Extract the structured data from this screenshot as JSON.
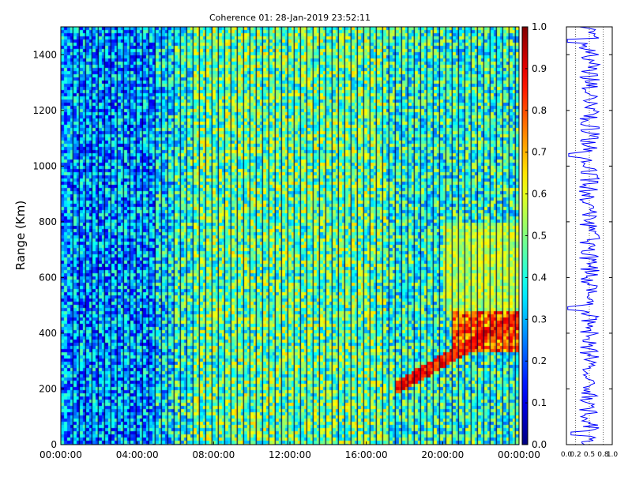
{
  "chart_data": [
    {
      "type": "heatmap",
      "title": "Coherence 01: 28-Jan-2019 23:52:11",
      "xlabel": "",
      "ylabel": "Range (Km)",
      "x_tick_labels": [
        "00:00:00",
        "04:00:00",
        "08:00:00",
        "12:00:00",
        "16:00:00",
        "20:00:00",
        "00:00:00"
      ],
      "x_tick_hours": [
        0,
        4,
        8,
        12,
        16,
        20,
        24
      ],
      "y_ticks": [
        0,
        200,
        400,
        600,
        800,
        1000,
        1200,
        1400
      ],
      "xlim_hours": [
        0,
        24
      ],
      "ylim": [
        0,
        1500
      ],
      "colorscale": "jet",
      "values_description_range": [
        0,
        1
      ],
      "features": [
        {
          "kind": "low-coherence band",
          "x_hours": [
            0,
            5
          ],
          "value_approx": 0.25
        },
        {
          "kind": "high-coherence echo",
          "x_hours": [
            17.5,
            24
          ],
          "y_km": [
            200,
            480
          ],
          "value_approx": 0.8
        }
      ]
    },
    {
      "type": "colorbar",
      "ticks": [
        0.0,
        0.1,
        0.2,
        0.3,
        0.4,
        0.5,
        0.6,
        0.7,
        0.8,
        0.9,
        1.0
      ],
      "tick_labels": [
        "0.0",
        "0.1",
        "0.2",
        "0.3",
        "0.4",
        "0.5",
        "0.6",
        "0.7",
        "0.8",
        "0.9",
        "1.0"
      ],
      "range": [
        0,
        1
      ]
    },
    {
      "type": "line",
      "x_tick_labels": [
        "0.0",
        "0.2",
        "0.5",
        "0.8",
        "1.0"
      ],
      "xlim": [
        0,
        1
      ],
      "ylim": [
        0,
        1500
      ],
      "color": "#0000ff",
      "x_mean": 0.5,
      "dips": [
        {
          "y_km": 1450,
          "x": 0.02
        },
        {
          "y_km": 1040,
          "x": 0.05
        },
        {
          "y_km": 490,
          "x": 0.03
        },
        {
          "y_km": 40,
          "x": 0.1
        }
      ]
    }
  ],
  "colors": {
    "profile_line": "#0000ff",
    "axes": "#000000",
    "grid_dotted": "#000000"
  }
}
